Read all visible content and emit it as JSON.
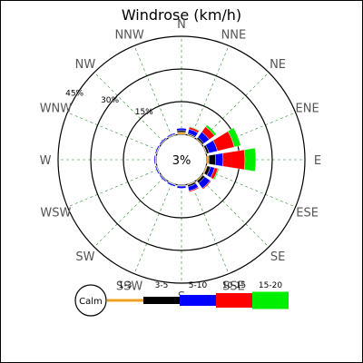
{
  "chart_data": {
    "type": "windrose",
    "title": "Windrose (km/h)",
    "directions": [
      "N",
      "NNE",
      "NE",
      "ENE",
      "E",
      "ESE",
      "SE",
      "SSE",
      "S",
      "SSW",
      "SW",
      "WSW",
      "W",
      "WNW",
      "NW",
      "NNW"
    ],
    "ring_labels": [
      "15%",
      "30%",
      "45%"
    ],
    "ring_values": [
      15,
      30,
      45
    ],
    "center_label": "3%",
    "calm_percent": 3,
    "calm_label": "Calm",
    "series": [
      {
        "name": "1-3",
        "color": "#f0a020",
        "values": [
          1.0,
          0.3,
          0.3,
          0.3,
          1.0,
          0.5,
          0.4,
          0.3,
          0.2,
          0.1,
          0.1,
          0.1,
          0.2,
          0.1,
          0.1,
          0.2
        ]
      },
      {
        "name": "3-5",
        "color": "#000000",
        "values": [
          0.8,
          0.5,
          0.8,
          1.0,
          3.0,
          1.5,
          1.2,
          0.8,
          0.3,
          0.2,
          0.2,
          0.2,
          0.2,
          0.2,
          0.2,
          0.3
        ]
      },
      {
        "name": "5-10",
        "color": "#0000ff",
        "values": [
          1.0,
          2.0,
          3.0,
          4.0,
          3.5,
          2.0,
          3.0,
          2.0,
          1.0,
          0.7,
          0.5,
          0.5,
          0.5,
          0.5,
          0.5,
          0.5
        ]
      },
      {
        "name": "10-15",
        "color": "#ff0000",
        "values": [
          0.0,
          1.0,
          3.0,
          8.0,
          10.0,
          1.5,
          0.5,
          0.5,
          0.0,
          0.0,
          0.0,
          0.0,
          0.0,
          0.0,
          0.0,
          0.0
        ]
      },
      {
        "name": "15-20",
        "color": "#00ee00",
        "values": [
          0.0,
          0.3,
          1.0,
          3.0,
          5.0,
          0.5,
          0.0,
          0.0,
          0.0,
          0.0,
          0.0,
          0.0,
          0.0,
          0.0,
          0.0,
          0.0
        ]
      }
    ],
    "legend_placement": "bottom",
    "grid": true
  }
}
